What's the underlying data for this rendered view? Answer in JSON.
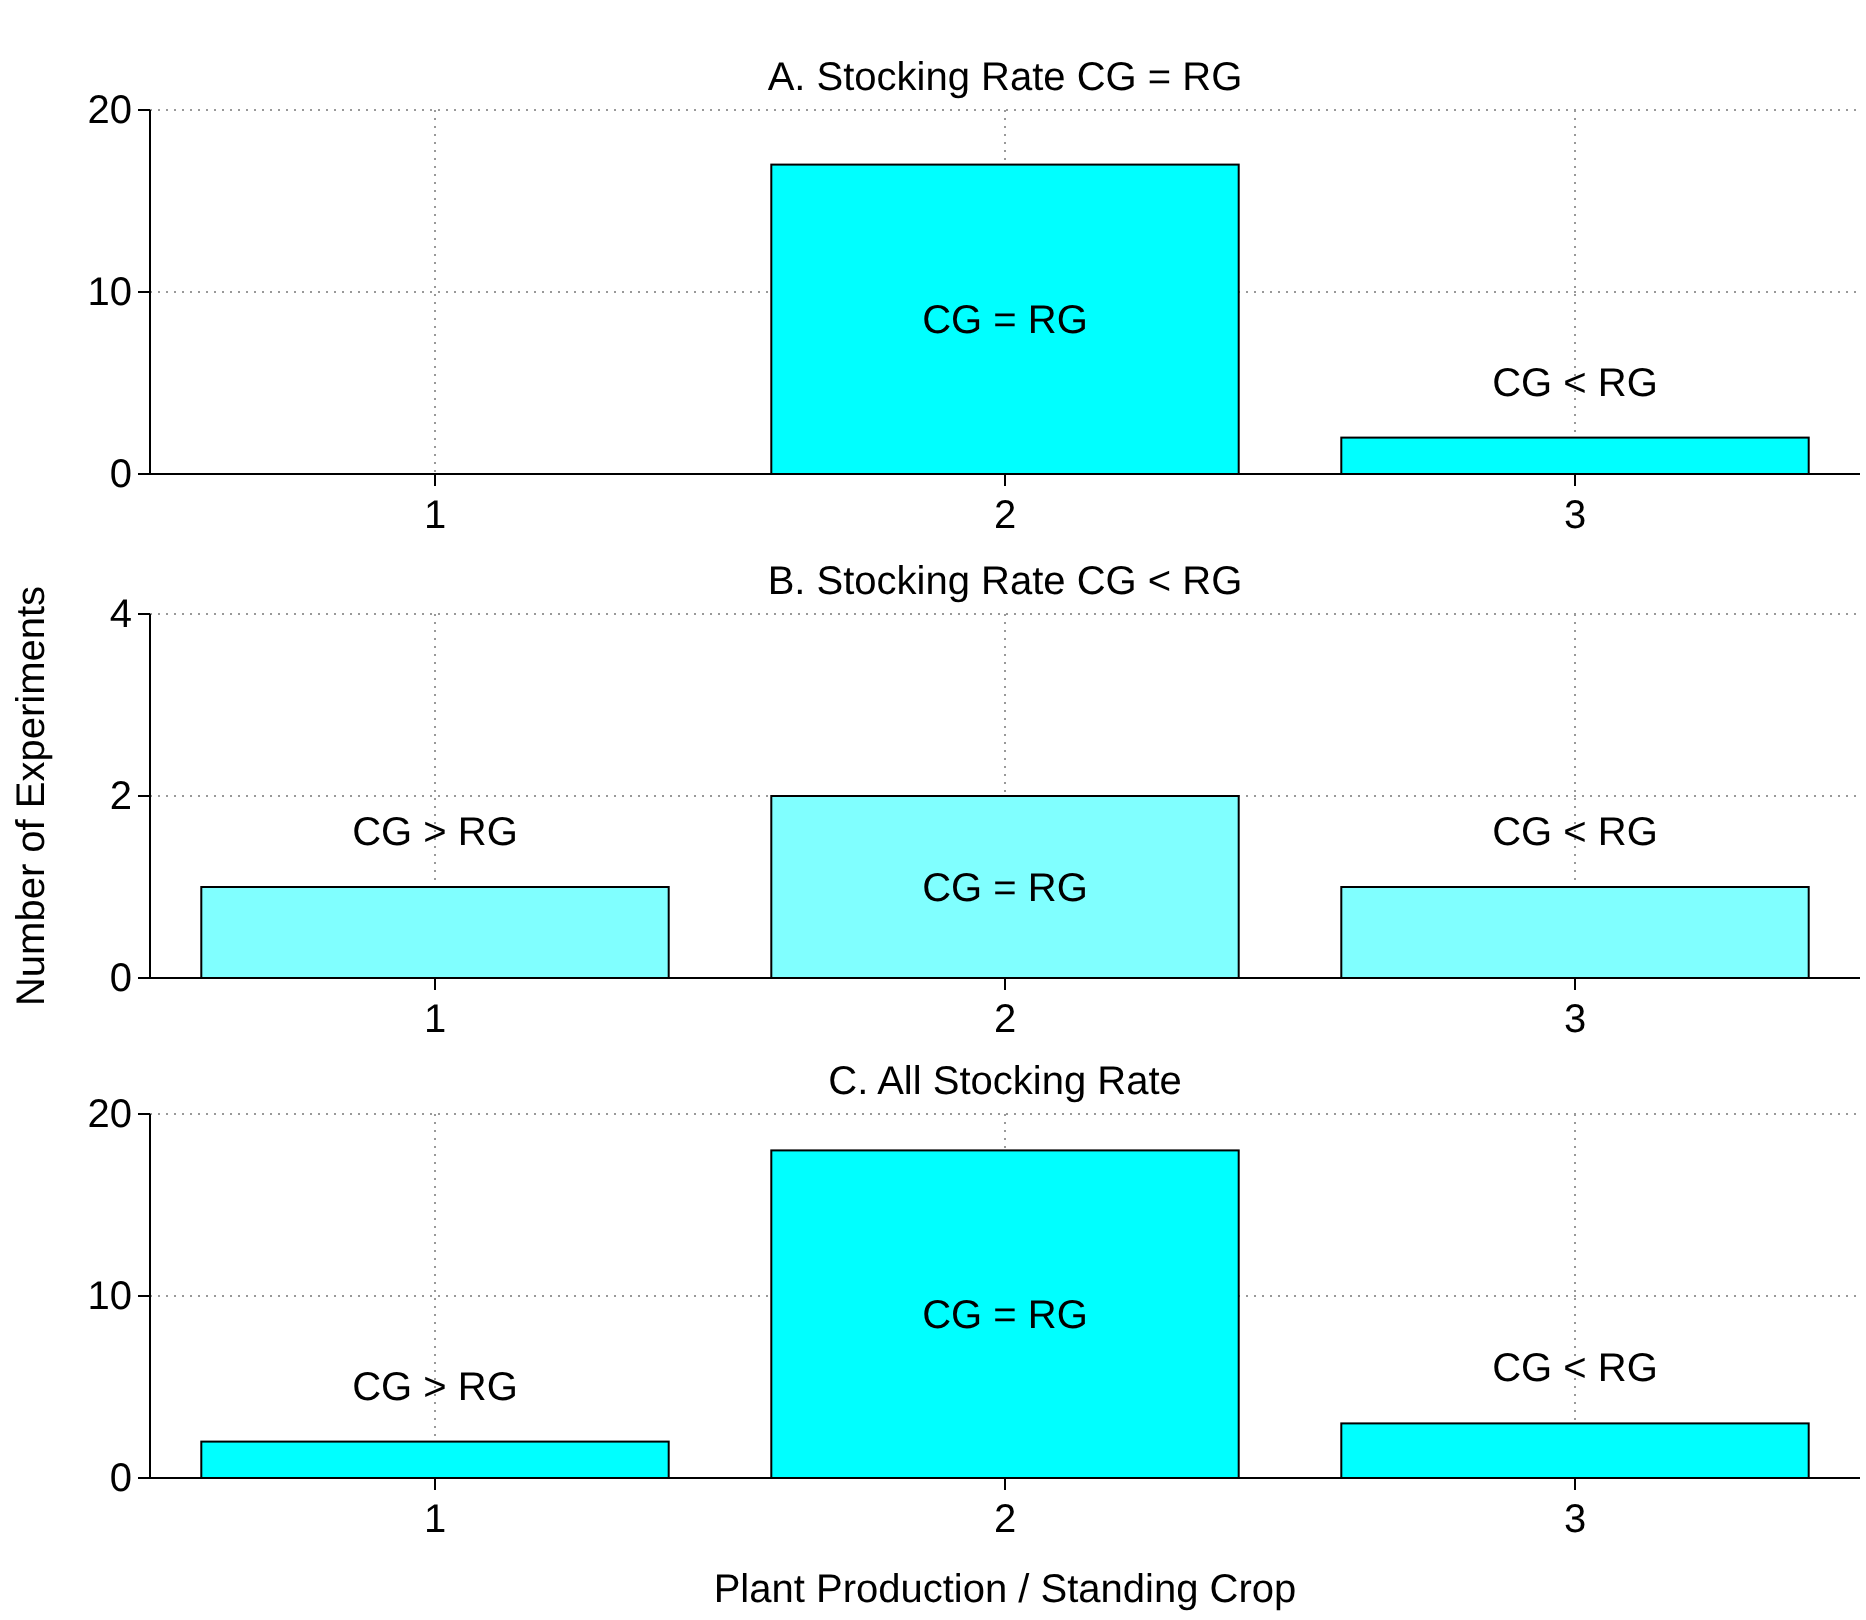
{
  "chart_data": [
    {
      "type": "bar",
      "title": "A. Stocking Rate CG = RG",
      "categories": [
        "1",
        "2",
        "3"
      ],
      "values": [
        0,
        17,
        2
      ],
      "value_labels": [
        null,
        "CG = RG",
        "CG < RG"
      ],
      "color": "#00ffff",
      "ylim": [
        0,
        20
      ],
      "yticks": [
        0,
        10,
        20
      ],
      "grid": true
    },
    {
      "type": "bar",
      "title": "B.   Stocking Rate CG < RG",
      "ylabel": "Number of Experiments",
      "categories": [
        "1",
        "2",
        "3"
      ],
      "values": [
        1,
        2,
        1
      ],
      "value_labels": [
        "CG > RG",
        "CG = RG",
        "CG < RG"
      ],
      "color": "#80ffff",
      "ylim": [
        0,
        4
      ],
      "yticks": [
        0,
        2,
        4
      ],
      "grid": true
    },
    {
      "type": "bar",
      "title": "C. All Stocking Rate",
      "xlabel": "Plant Production / Standing Crop",
      "categories": [
        "1",
        "2",
        "3"
      ],
      "values": [
        2,
        18,
        3
      ],
      "value_labels": [
        "CG > RG",
        "CG = RG",
        "CG < RG"
      ],
      "color": "#00ffff",
      "ylim": [
        0,
        20
      ],
      "yticks": [
        0,
        10,
        20
      ],
      "grid": true
    }
  ]
}
